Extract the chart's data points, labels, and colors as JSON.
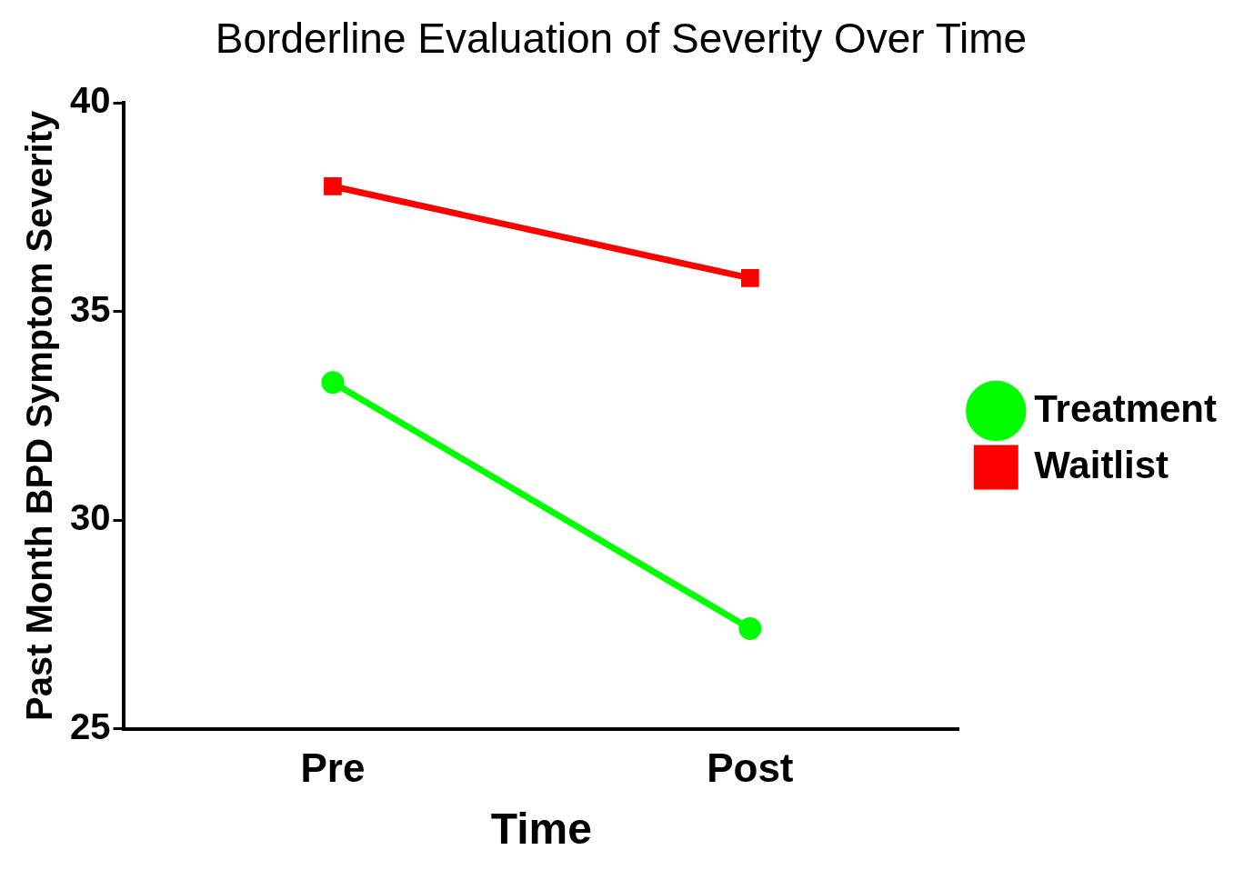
{
  "chart_data": {
    "type": "line",
    "title": "Borderline Evaluation of Severity Over Time",
    "xlabel": "Time",
    "ylabel": "Past Month BPD Symptom Severity",
    "categories": [
      "Pre",
      "Post"
    ],
    "series": [
      {
        "name": "Treatment",
        "color": "#00ff00",
        "values": [
          33.3,
          27.4
        ],
        "marker": "circle"
      },
      {
        "name": "Waitlist",
        "color": "#ff0000",
        "values": [
          38.0,
          35.8
        ],
        "marker": "square"
      }
    ],
    "ylim": [
      25,
      40
    ],
    "yticks": [
      25,
      30,
      35,
      40
    ],
    "grid": false,
    "legend": "right",
    "line_style": "solid"
  }
}
